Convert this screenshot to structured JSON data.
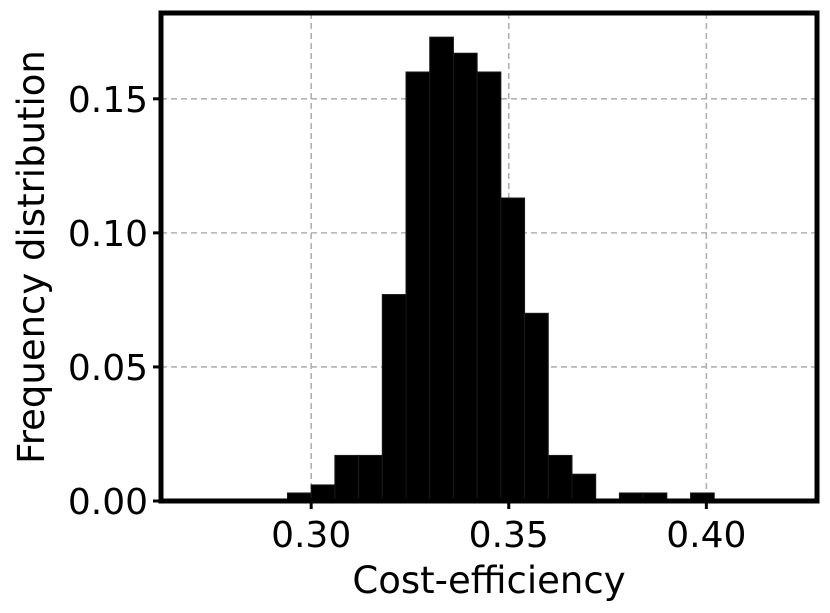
{
  "chart_data": {
    "type": "bar",
    "xlabel": "Cost-efficiency",
    "ylabel": "Frequency distribution",
    "xlim": [
      0.262,
      0.428
    ],
    "ylim": [
      0,
      0.182
    ],
    "grid": true,
    "xticks": [
      {
        "value": 0.3,
        "label": "0.30"
      },
      {
        "value": 0.35,
        "label": "0.35"
      },
      {
        "value": 0.4,
        "label": "0.40"
      }
    ],
    "yticks": [
      {
        "value": 0.0,
        "label": "0.00"
      },
      {
        "value": 0.05,
        "label": "0.05"
      },
      {
        "value": 0.1,
        "label": "0.10"
      },
      {
        "value": 0.15,
        "label": "0.15"
      }
    ],
    "bin_width": 0.006,
    "bins": [
      {
        "x0": 0.294,
        "value": 0.003
      },
      {
        "x0": 0.3,
        "value": 0.006
      },
      {
        "x0": 0.306,
        "value": 0.017
      },
      {
        "x0": 0.312,
        "value": 0.017
      },
      {
        "x0": 0.318,
        "value": 0.077
      },
      {
        "x0": 0.324,
        "value": 0.16
      },
      {
        "x0": 0.33,
        "value": 0.173
      },
      {
        "x0": 0.336,
        "value": 0.167
      },
      {
        "x0": 0.342,
        "value": 0.16
      },
      {
        "x0": 0.348,
        "value": 0.113
      },
      {
        "x0": 0.354,
        "value": 0.07
      },
      {
        "x0": 0.36,
        "value": 0.017
      },
      {
        "x0": 0.366,
        "value": 0.01
      },
      {
        "x0": 0.372,
        "value": 0.0
      },
      {
        "x0": 0.378,
        "value": 0.003
      },
      {
        "x0": 0.384,
        "value": 0.003
      },
      {
        "x0": 0.39,
        "value": 0.0
      },
      {
        "x0": 0.396,
        "value": 0.003
      }
    ],
    "colors": {
      "bar_fill": "#000000",
      "bar_edge": "#1a1a1a",
      "grid": "#b0b0b0",
      "frame": "#000000"
    }
  }
}
